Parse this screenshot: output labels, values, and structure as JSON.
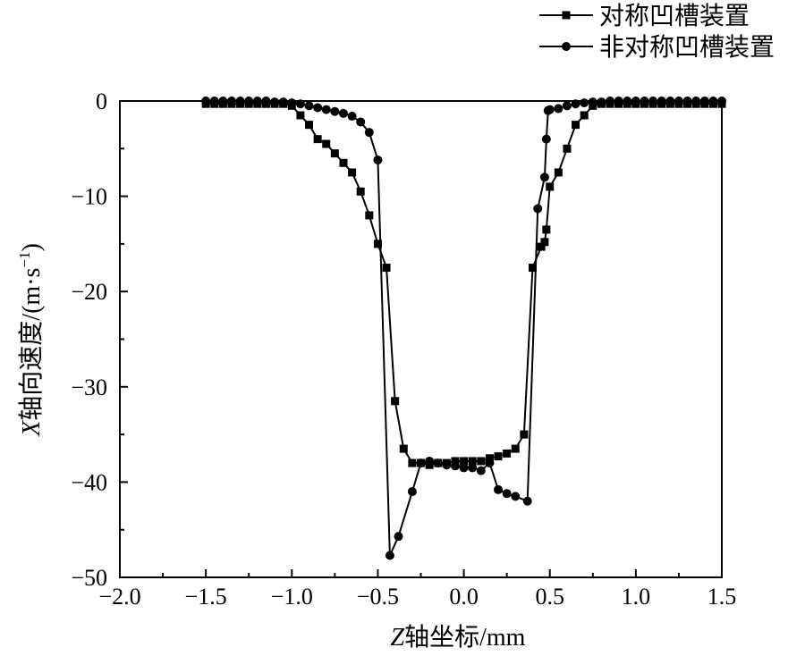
{
  "chart_data": {
    "type": "line",
    "xlabel": "Z轴坐标/mm",
    "xlabel_parts": {
      "italic": "Z",
      "rest": "轴坐标/mm"
    },
    "ylabel": "X轴向速度/(m·s⁻¹)",
    "ylabel_parts": {
      "italic": "X",
      "rest": "轴向速度/(m·s",
      "sup": "−1",
      "close": ")"
    },
    "xlim": [
      -2.0,
      1.5
    ],
    "ylim": [
      -50,
      0
    ],
    "xticks": [
      -2.0,
      -1.5,
      -1.0,
      -0.5,
      0.0,
      0.5,
      1.0,
      1.5
    ],
    "xtick_labels": [
      "−2.0",
      "−1.5",
      "−1.0",
      "−0.5",
      "0.0",
      "0.5",
      "1.0",
      "1.5"
    ],
    "yticks": [
      0,
      -10,
      -20,
      -30,
      -40,
      -50
    ],
    "ytick_labels": [
      "0",
      "−10",
      "−20",
      "−30",
      "−40",
      "−50"
    ],
    "grid": false,
    "legend_position": "top-right",
    "series": [
      {
        "name": "对称凹槽装置",
        "marker": "square",
        "color": "#000000",
        "x": [
          -1.5,
          -1.45,
          -1.4,
          -1.35,
          -1.3,
          -1.25,
          -1.2,
          -1.15,
          -1.1,
          -1.05,
          -1.0,
          -0.95,
          -0.9,
          -0.85,
          -0.8,
          -0.75,
          -0.7,
          -0.65,
          -0.6,
          -0.55,
          -0.5,
          -0.45,
          -0.4,
          -0.35,
          -0.3,
          -0.25,
          -0.2,
          -0.15,
          -0.1,
          -0.05,
          0.0,
          0.05,
          0.1,
          0.15,
          0.2,
          0.25,
          0.3,
          0.35,
          0.4,
          0.45,
          0.47,
          0.48,
          0.5,
          0.55,
          0.6,
          0.65,
          0.7,
          0.75,
          0.8,
          0.85,
          0.9,
          0.95,
          1.0,
          1.05,
          1.1,
          1.15,
          1.2,
          1.25,
          1.3,
          1.35,
          1.4,
          1.45,
          1.5
        ],
        "y": [
          -0.3,
          -0.3,
          -0.3,
          -0.3,
          -0.3,
          -0.3,
          -0.3,
          -0.3,
          -0.3,
          -0.3,
          -0.5,
          -1.5,
          -2.5,
          -4.0,
          -4.5,
          -5.5,
          -6.5,
          -7.5,
          -9.5,
          -12.0,
          -15.0,
          -17.5,
          -31.5,
          -36.5,
          -38.0,
          -38.0,
          -38.2,
          -38.0,
          -38.0,
          -37.8,
          -37.8,
          -37.8,
          -37.8,
          -37.5,
          -37.3,
          -37.0,
          -36.5,
          -35.0,
          -17.5,
          -15.3,
          -14.8,
          -13.5,
          -9.0,
          -7.5,
          -5.0,
          -2.5,
          -1.5,
          -0.5,
          -0.3,
          -0.3,
          -0.3,
          -0.3,
          -0.3,
          -0.3,
          -0.3,
          -0.3,
          -0.3,
          -0.3,
          -0.3,
          -0.3,
          -0.3,
          -0.3,
          -0.3
        ]
      },
      {
        "name": "非对称凹槽装置",
        "marker": "circle",
        "color": "#000000",
        "x": [
          -1.5,
          -1.45,
          -1.4,
          -1.35,
          -1.3,
          -1.25,
          -1.2,
          -1.15,
          -1.1,
          -1.05,
          -1.0,
          -0.95,
          -0.9,
          -0.85,
          -0.8,
          -0.75,
          -0.7,
          -0.65,
          -0.6,
          -0.55,
          -0.5,
          -0.43,
          -0.38,
          -0.3,
          -0.25,
          -0.2,
          -0.15,
          -0.1,
          -0.05,
          0.0,
          0.05,
          0.1,
          0.15,
          0.2,
          0.25,
          0.3,
          0.37,
          0.43,
          0.47,
          0.48,
          0.49,
          0.5,
          0.55,
          0.6,
          0.65,
          0.7,
          0.75,
          0.8,
          0.85,
          0.9,
          0.95,
          1.0,
          1.05,
          1.1,
          1.15,
          1.2,
          1.25,
          1.3,
          1.35,
          1.4,
          1.45,
          1.5
        ],
        "y": [
          0.0,
          0.0,
          0.0,
          0.0,
          0.0,
          0.0,
          0.0,
          0.0,
          -0.1,
          -0.1,
          -0.2,
          -0.3,
          -0.5,
          -0.7,
          -0.9,
          -1.1,
          -1.3,
          -1.6,
          -2.2,
          -3.3,
          -6.2,
          -47.7,
          -45.7,
          -41.0,
          -38.0,
          -37.8,
          -38.0,
          -38.2,
          -38.3,
          -38.5,
          -38.5,
          -38.8,
          -38.0,
          -40.8,
          -41.2,
          -41.5,
          -42.0,
          -11.3,
          -8.0,
          -4.0,
          -1.0,
          -0.9,
          -0.8,
          -0.5,
          -0.3,
          -0.2,
          -0.1,
          -0.1,
          0.0,
          0.0,
          0.0,
          0.0,
          0.0,
          0.0,
          0.0,
          0.0,
          0.0,
          0.0,
          0.0,
          0.0,
          0.0,
          0.0
        ]
      }
    ]
  }
}
